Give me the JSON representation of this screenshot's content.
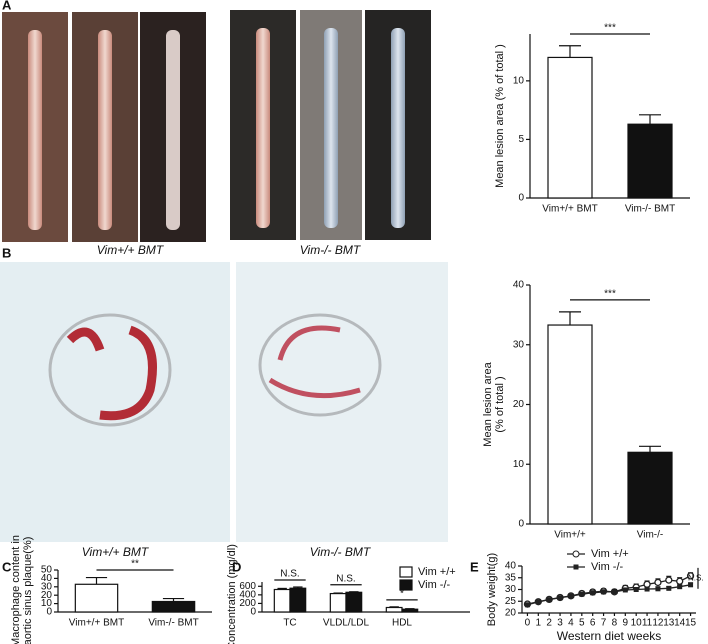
{
  "panel_labels": [
    "A",
    "B",
    "C",
    "D",
    "E"
  ],
  "image_captions": [
    "Vim+/+ BMT",
    "Vim-/- BMT",
    "Vim+/+ BMT",
    "Vim-/- BMT"
  ],
  "chart_data": [
    {
      "type": "bar",
      "ylabel": [
        "Mean lesion area (% of total )"
      ],
      "categories": [
        "Vim+/+ BMT",
        "Vim-/- BMT"
      ],
      "values": [
        12,
        6.3
      ],
      "errors": [
        1,
        0.8
      ],
      "colors": [
        "#ffffff",
        "#111111"
      ],
      "ylim": [
        0,
        14
      ],
      "yticks": [
        0,
        5,
        10
      ],
      "annotations": [
        "***"
      ]
    },
    {
      "type": "bar",
      "ylabel": [
        "Mean lesion area",
        "(% of total )"
      ],
      "categories": [
        "Vim+/+",
        "Vim-/-"
      ],
      "values": [
        33.3,
        12
      ],
      "errors": [
        2.2,
        1
      ],
      "colors": [
        "#ffffff",
        "#111111"
      ],
      "ylim": [
        0,
        40
      ],
      "yticks": [
        0,
        10,
        20,
        30,
        40
      ],
      "annotations": [
        "***"
      ]
    },
    {
      "type": "bar",
      "ylabel": [
        "Macrophage content in",
        "aortic sinus plaque(%)"
      ],
      "categories": [
        "Vim+/+ BMT",
        "Vim-/- BMT"
      ],
      "values": [
        33,
        12.5
      ],
      "errors": [
        8,
        3.5
      ],
      "colors": [
        "#ffffff",
        "#111111"
      ],
      "ylim": [
        0,
        50
      ],
      "yticks": [
        0,
        10,
        20,
        30,
        40,
        50
      ],
      "annotations": [
        "**"
      ]
    },
    {
      "type": "grouped_bar",
      "ylabel": [
        "Concentration (mg/dl)"
      ],
      "categories": [
        "TC",
        "VLDL/LDL",
        "HDL"
      ],
      "series": [
        {
          "name": "Vim +/+",
          "color": "#ffffff",
          "values": [
            525,
            430,
            105
          ],
          "errors": [
            25,
            12,
            15
          ]
        },
        {
          "name": "Vim -/-",
          "color": "#111111",
          "values": [
            555,
            460,
            65
          ],
          "errors": [
            28,
            12,
            12
          ]
        }
      ],
      "ylim": [
        0,
        700
      ],
      "yticks": [
        0,
        200,
        400,
        600
      ],
      "annotations": [
        "N.S.",
        "N.S.",
        "*"
      ],
      "legend": "top-right"
    },
    {
      "type": "line",
      "xlabel": "Western diet weeks",
      "ylabel": [
        "Body weight(g)"
      ],
      "x": [
        0,
        1,
        2,
        3,
        4,
        5,
        6,
        7,
        8,
        9,
        10,
        11,
        12,
        13,
        14,
        15
      ],
      "series": [
        {
          "name": "Vim +/+",
          "color": "#222222",
          "marker": "circle",
          "values": [
            23.8,
            24.8,
            25.8,
            26.6,
            27.3,
            28.3,
            28.9,
            29.3,
            29,
            30.5,
            31,
            32.2,
            33,
            34,
            33.5,
            35.8
          ],
          "errors": [
            0.5,
            0.6,
            0.6,
            0.7,
            0.8,
            0.9,
            1,
            1,
            1,
            1.2,
            1.3,
            1.4,
            1.5,
            1.6,
            1.5,
            1.3
          ]
        },
        {
          "name": "Vim -/-",
          "color": "#222222",
          "marker": "square",
          "values": [
            23.5,
            24.7,
            25.7,
            26.5,
            27.2,
            28,
            28.6,
            29,
            29,
            29.8,
            30,
            30.2,
            30.3,
            30.5,
            31.2,
            32
          ],
          "errors": [
            0.5,
            0.5,
            0.6,
            0.6,
            0.7,
            0.8,
            0.8,
            0.8,
            0.9,
            0.8,
            0.8,
            0.8,
            0.8,
            0.7,
            0.7,
            0.8
          ]
        }
      ],
      "xlim": [
        -0.5,
        15.5
      ],
      "xticks": [
        0,
        1,
        2,
        3,
        4,
        5,
        6,
        7,
        8,
        9,
        10,
        11,
        12,
        13,
        14,
        15
      ],
      "ylim": [
        20,
        40
      ],
      "yticks": [
        20,
        25,
        30,
        35,
        40
      ],
      "annotations": [
        "N.S."
      ],
      "legend": "top-left"
    }
  ]
}
